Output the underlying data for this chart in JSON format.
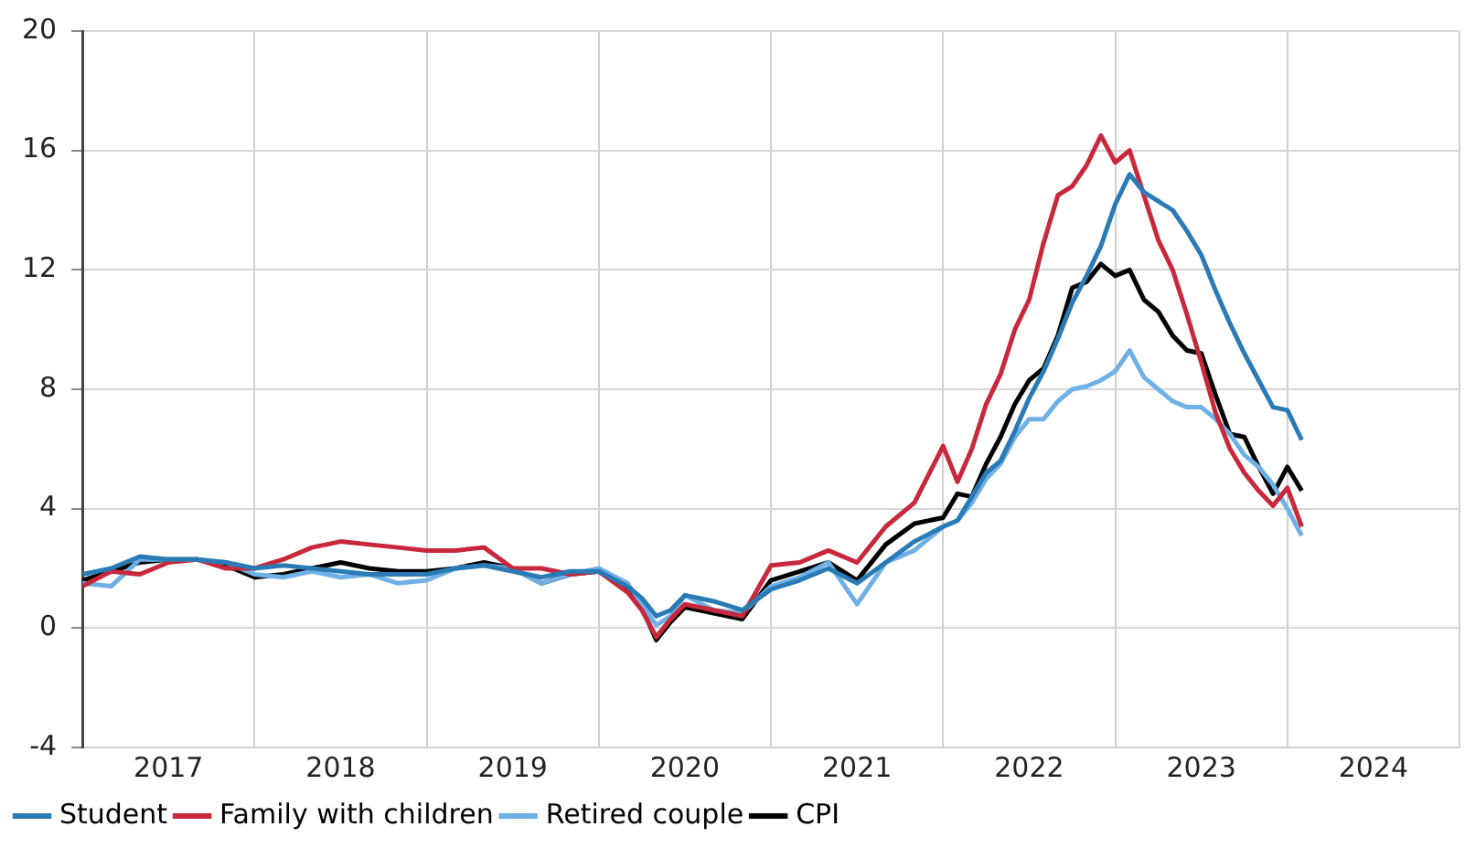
{
  "chart_data": {
    "type": "line",
    "x": [
      "2017-01",
      "2017-03",
      "2017-05",
      "2017-07",
      "2017-09",
      "2017-11",
      "2018-01",
      "2018-03",
      "2018-05",
      "2018-07",
      "2018-09",
      "2018-11",
      "2019-01",
      "2019-03",
      "2019-05",
      "2019-07",
      "2019-09",
      "2019-11",
      "2020-01",
      "2020-03",
      "2020-04",
      "2020-05",
      "2020-06",
      "2020-07",
      "2020-09",
      "2020-11",
      "2021-01",
      "2021-03",
      "2021-05",
      "2021-07",
      "2021-09",
      "2021-11",
      "2022-01",
      "2022-02",
      "2022-03",
      "2022-04",
      "2022-05",
      "2022-06",
      "2022-07",
      "2022-08",
      "2022-09",
      "2022-10",
      "2022-11",
      "2022-12",
      "2023-01",
      "2023-02",
      "2023-03",
      "2023-04",
      "2023-05",
      "2023-06",
      "2023-07",
      "2023-08",
      "2023-09",
      "2023-10",
      "2023-11",
      "2023-12",
      "2024-01",
      "2024-02"
    ],
    "series": [
      {
        "name": "Student",
        "color": "#2a7ab5",
        "values": [
          1.8,
          2.0,
          2.4,
          2.3,
          2.3,
          2.2,
          2.0,
          2.1,
          2.0,
          1.9,
          1.8,
          1.8,
          1.8,
          2.0,
          2.1,
          1.9,
          1.7,
          1.9,
          1.9,
          1.4,
          1.0,
          0.4,
          0.6,
          1.1,
          0.9,
          0.6,
          1.3,
          1.6,
          2.0,
          1.5,
          2.2,
          2.9,
          3.4,
          3.6,
          4.4,
          5.2,
          5.6,
          6.6,
          7.7,
          8.6,
          9.7,
          10.9,
          11.8,
          12.8,
          14.2,
          15.2,
          14.6,
          14.3,
          14.0,
          13.3,
          12.5,
          11.3,
          10.2,
          9.2,
          8.3,
          7.4,
          7.3,
          6.3
        ]
      },
      {
        "name": "Family with children",
        "color": "#c8283c",
        "values": [
          1.4,
          1.9,
          1.8,
          2.2,
          2.3,
          2.0,
          2.0,
          2.3,
          2.7,
          2.9,
          2.8,
          2.7,
          2.6,
          2.6,
          2.7,
          2.0,
          2.0,
          1.8,
          1.9,
          1.2,
          0.6,
          -0.3,
          0.3,
          0.8,
          0.6,
          0.4,
          2.1,
          2.2,
          2.6,
          2.2,
          3.4,
          4.2,
          6.1,
          4.9,
          6.0,
          7.5,
          8.5,
          10.0,
          11.0,
          12.9,
          14.5,
          14.8,
          15.5,
          16.5,
          15.6,
          16.0,
          14.5,
          13.0,
          12.0,
          10.5,
          8.9,
          7.2,
          6.0,
          5.2,
          4.6,
          4.1,
          4.7,
          3.4
        ]
      },
      {
        "name": "Retired couple",
        "color": "#6fb0e6",
        "values": [
          1.5,
          1.4,
          2.3,
          2.3,
          2.3,
          2.2,
          1.8,
          1.7,
          1.9,
          1.7,
          1.8,
          1.5,
          1.6,
          2.0,
          2.1,
          2.0,
          1.5,
          1.8,
          2.0,
          1.5,
          0.8,
          0.1,
          0.4,
          1.1,
          0.6,
          0.5,
          1.4,
          1.7,
          2.2,
          0.8,
          2.2,
          2.6,
          3.4,
          3.6,
          4.2,
          5.0,
          5.5,
          6.4,
          7.0,
          7.0,
          7.6,
          8.0,
          8.1,
          8.3,
          8.6,
          9.3,
          8.4,
          8.0,
          7.6,
          7.4,
          7.4,
          7.0,
          6.5,
          5.8,
          5.4,
          4.8,
          4.0,
          3.1
        ]
      },
      {
        "name": "CPI",
        "color": "#000000",
        "values": [
          1.6,
          1.9,
          2.2,
          2.3,
          2.3,
          2.1,
          1.7,
          1.8,
          2.0,
          2.2,
          2.0,
          1.9,
          1.9,
          2.0,
          2.2,
          2.0,
          1.5,
          1.8,
          1.9,
          1.3,
          0.7,
          -0.4,
          0.2,
          0.7,
          0.5,
          0.3,
          1.6,
          1.9,
          2.2,
          1.6,
          2.8,
          3.5,
          3.7,
          4.5,
          4.4,
          5.5,
          6.4,
          7.5,
          8.3,
          8.7,
          9.8,
          11.4,
          11.6,
          12.2,
          11.8,
          12.0,
          11.0,
          10.6,
          9.8,
          9.3,
          9.2,
          7.8,
          6.5,
          6.4,
          5.4,
          4.5,
          5.4,
          4.6
        ]
      }
    ],
    "xlim": [
      "2017-01",
      "2025-01"
    ],
    "xticks": [
      {
        "value": "2017-01",
        "label": null
      },
      {
        "value": "2017-07",
        "label": "2017"
      },
      {
        "value": "2018-01",
        "label": null
      },
      {
        "value": "2018-07",
        "label": "2018"
      },
      {
        "value": "2019-01",
        "label": null
      },
      {
        "value": "2019-07",
        "label": "2019"
      },
      {
        "value": "2020-01",
        "label": null
      },
      {
        "value": "2020-07",
        "label": "2020"
      },
      {
        "value": "2021-01",
        "label": null
      },
      {
        "value": "2021-07",
        "label": "2021"
      },
      {
        "value": "2022-01",
        "label": null
      },
      {
        "value": "2022-07",
        "label": "2022"
      },
      {
        "value": "2023-01",
        "label": null
      },
      {
        "value": "2023-07",
        "label": "2023"
      },
      {
        "value": "2024-01",
        "label": null
      },
      {
        "value": "2024-07",
        "label": "2024"
      },
      {
        "value": "2025-01",
        "label": null
      }
    ],
    "ylim": [
      -4,
      20
    ],
    "yticks": [
      -4,
      0,
      4,
      8,
      12,
      16,
      20
    ],
    "grid": true,
    "legend": "bottom left",
    "marker": "none",
    "line_style": "solid"
  }
}
